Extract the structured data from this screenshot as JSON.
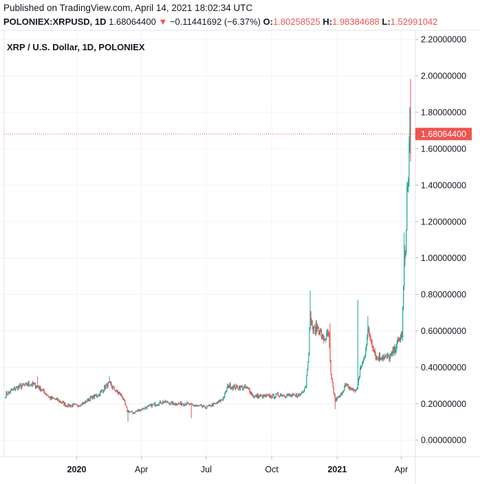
{
  "header": {
    "published": "Published on TradingView.com, April 14, 2021 18:02:34 UTC",
    "symbol": "POLONIEX:XRPUSD, 1D",
    "last": "1.68064400",
    "change_arrow": "▼",
    "change": "−0.11441692 (−6.37%)",
    "open_label": "O:",
    "open": "1.80258525",
    "high_label": "H:",
    "high": "1.98384688",
    "low_label": "L:",
    "low": "1.52991042"
  },
  "colors": {
    "up": "#26a69a",
    "down": "#ef5350",
    "grid": "#f0f3fa",
    "axis_line": "#e0e3eb",
    "price_label_bg": "#ef5350"
  },
  "chart_data": {
    "type": "candlestick",
    "title": "XRP / U.S. Dollar, 1D, POLONIEX",
    "ylim": [
      -0.09,
      2.25
    ],
    "y_ticks": [
      "0.00000000",
      "0.20000000",
      "0.40000000",
      "0.60000000",
      "0.80000000",
      "1.00000000",
      "1.20000000",
      "1.40000000",
      "1.60000000",
      "1.80000000",
      "2.00000000",
      "2.20000000"
    ],
    "x_start": "2019-09-23",
    "x_end": "2021-04-14",
    "x_ticks": [
      {
        "date": "2020-01-01",
        "label": "2020",
        "bold": true
      },
      {
        "date": "2020-04-01",
        "label": "Apr",
        "bold": false
      },
      {
        "date": "2020-07-01",
        "label": "Jul",
        "bold": false
      },
      {
        "date": "2020-10-01",
        "label": "Oct",
        "bold": false
      },
      {
        "date": "2021-01-01",
        "label": "2021",
        "bold": true
      },
      {
        "date": "2021-04-01",
        "label": "Apr",
        "bold": false
      }
    ],
    "last_price": 1.680644,
    "last_price_label": "1.68064400",
    "price_path": [
      [
        "2019-09-23",
        0.25
      ],
      [
        "2019-10-01",
        0.27
      ],
      [
        "2019-10-10",
        0.29
      ],
      [
        "2019-10-20",
        0.3
      ],
      [
        "2019-10-27",
        0.31
      ],
      [
        "2019-11-05",
        0.3
      ],
      [
        "2019-11-15",
        0.27
      ],
      [
        "2019-11-25",
        0.23
      ],
      [
        "2019-12-05",
        0.22
      ],
      [
        "2019-12-18",
        0.19
      ],
      [
        "2020-01-01",
        0.19
      ],
      [
        "2020-01-10",
        0.2
      ],
      [
        "2020-01-20",
        0.23
      ],
      [
        "2020-02-01",
        0.25
      ],
      [
        "2020-02-10",
        0.29
      ],
      [
        "2020-02-16",
        0.31
      ],
      [
        "2020-02-25",
        0.27
      ],
      [
        "2020-03-05",
        0.24
      ],
      [
        "2020-03-12",
        0.16
      ],
      [
        "2020-03-20",
        0.15
      ],
      [
        "2020-04-01",
        0.17
      ],
      [
        "2020-04-15",
        0.19
      ],
      [
        "2020-05-01",
        0.21
      ],
      [
        "2020-05-15",
        0.2
      ],
      [
        "2020-06-01",
        0.2
      ],
      [
        "2020-06-15",
        0.19
      ],
      [
        "2020-07-01",
        0.18
      ],
      [
        "2020-07-15",
        0.2
      ],
      [
        "2020-07-25",
        0.23
      ],
      [
        "2020-08-01",
        0.3
      ],
      [
        "2020-08-10",
        0.29
      ],
      [
        "2020-08-20",
        0.29
      ],
      [
        "2020-08-30",
        0.28
      ],
      [
        "2020-09-05",
        0.24
      ],
      [
        "2020-09-15",
        0.24
      ],
      [
        "2020-10-01",
        0.24
      ],
      [
        "2020-10-15",
        0.25
      ],
      [
        "2020-11-01",
        0.24
      ],
      [
        "2020-11-10",
        0.25
      ],
      [
        "2020-11-18",
        0.3
      ],
      [
        "2020-11-22",
        0.5
      ],
      [
        "2020-11-24",
        0.68
      ],
      [
        "2020-11-28",
        0.6
      ],
      [
        "2020-12-05",
        0.62
      ],
      [
        "2020-12-12",
        0.55
      ],
      [
        "2020-12-20",
        0.58
      ],
      [
        "2020-12-23",
        0.35
      ],
      [
        "2020-12-29",
        0.22
      ],
      [
        "2021-01-05",
        0.24
      ],
      [
        "2021-01-12",
        0.3
      ],
      [
        "2021-01-20",
        0.28
      ],
      [
        "2021-01-28",
        0.27
      ],
      [
        "2021-02-01",
        0.35
      ],
      [
        "2021-02-03",
        0.4
      ],
      [
        "2021-02-08",
        0.45
      ],
      [
        "2021-02-13",
        0.6
      ],
      [
        "2021-02-20",
        0.52
      ],
      [
        "2021-02-25",
        0.45
      ],
      [
        "2021-03-05",
        0.46
      ],
      [
        "2021-03-12",
        0.45
      ],
      [
        "2021-03-18",
        0.46
      ],
      [
        "2021-03-25",
        0.52
      ],
      [
        "2021-03-30",
        0.56
      ],
      [
        "2021-04-02",
        0.58
      ],
      [
        "2021-04-05",
        0.95
      ],
      [
        "2021-04-07",
        1.05
      ],
      [
        "2021-04-09",
        1.36
      ],
      [
        "2021-04-11",
        1.42
      ],
      [
        "2021-04-13",
        1.79
      ],
      [
        "2021-04-14",
        1.68
      ]
    ],
    "spikes": [
      {
        "date": "2019-11-07",
        "high": 0.35
      },
      {
        "date": "2020-02-16",
        "high": 0.35
      },
      {
        "date": "2020-03-13",
        "low": 0.1
      },
      {
        "date": "2020-06-10",
        "low": 0.12
      },
      {
        "date": "2020-11-24",
        "high": 0.82
      },
      {
        "date": "2020-12-22",
        "high": 0.64
      },
      {
        "date": "2020-12-29",
        "low": 0.17
      },
      {
        "date": "2021-01-30",
        "high": 0.77
      },
      {
        "date": "2021-02-13",
        "high": 0.68
      },
      {
        "date": "2021-04-05",
        "high": 1.14
      },
      {
        "date": "2021-04-14",
        "high": 1.98384688
      }
    ]
  }
}
